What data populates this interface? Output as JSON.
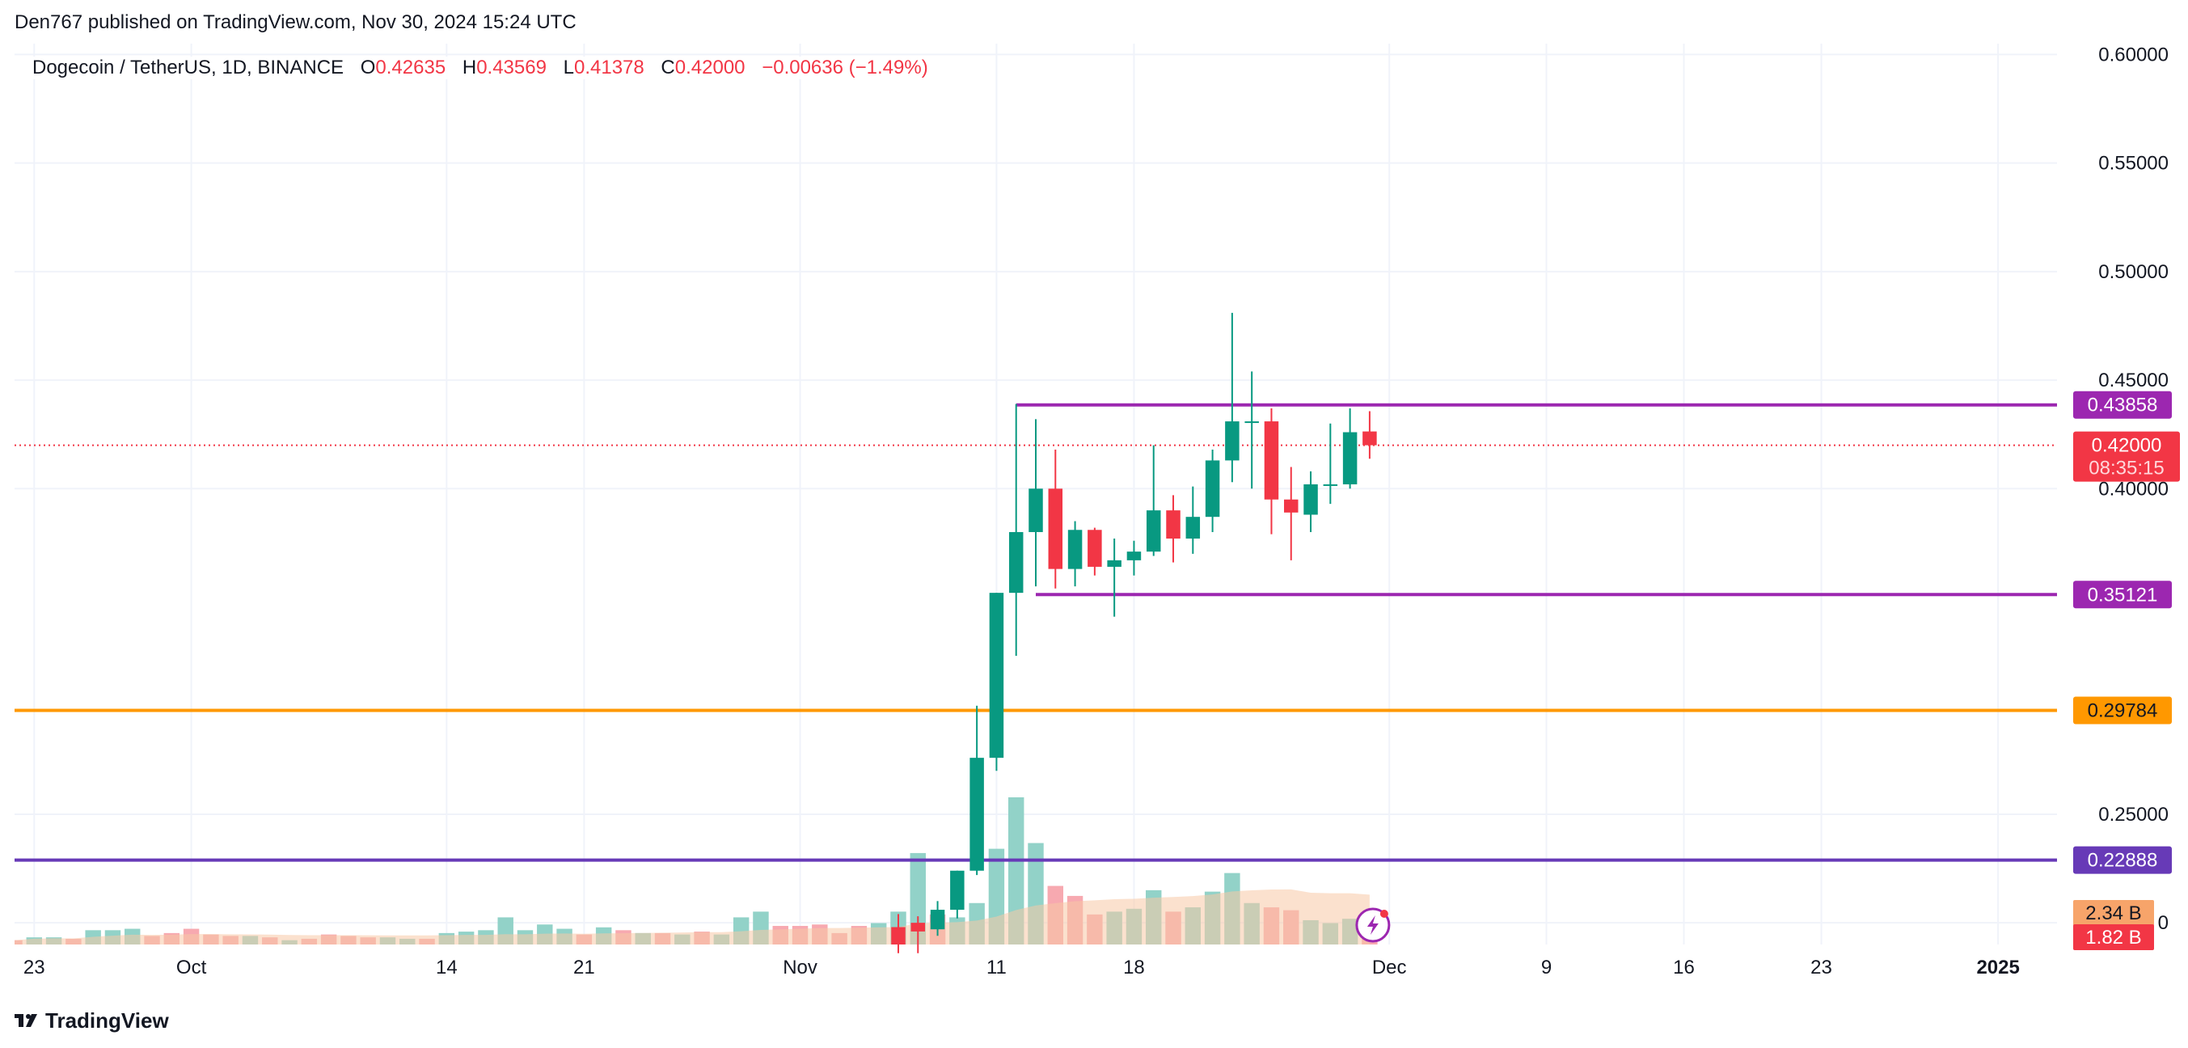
{
  "header": {
    "byline": "Den767 published on TradingView.com, Nov 30, 2024 15:24 UTC"
  },
  "legend": {
    "symbol": "Dogecoin / TetherUS, 1D, BINANCE",
    "open_label": "O",
    "open": "0.42635",
    "high_label": "H",
    "high": "0.43569",
    "low_label": "L",
    "low": "0.41378",
    "close_label": "C",
    "close": "0.42000",
    "change": "−0.00636 (−1.49%)"
  },
  "footer": {
    "brand": "TradingView"
  },
  "colors": {
    "up": "#089981",
    "down": "#f23645",
    "up_volume": "#92d2c8",
    "down_volume": "#f7a9b0",
    "purple": "#9c27b0",
    "indigo": "#673ab7",
    "orange": "#ff9800",
    "grid": "#f0f3fa",
    "ma_volume": "#f7c9a6"
  },
  "chart_data": {
    "type": "candlestick",
    "grid": true,
    "y_axis": {
      "ticks": [
        {
          "value": 0.6,
          "label": "0.60000"
        },
        {
          "value": 0.55,
          "label": "0.55000"
        },
        {
          "value": 0.5,
          "label": "0.50000"
        },
        {
          "value": 0.45,
          "label": "0.45000"
        },
        {
          "value": 0.4,
          "label": "0.40000"
        },
        {
          "value": 0.25,
          "label": "0.25000"
        },
        {
          "value": 0.2,
          "label": "0"
        }
      ],
      "range": [
        0.19,
        0.605
      ]
    },
    "x_axis": {
      "ticks": [
        {
          "date": "2024-09-23",
          "label": "23",
          "bold": false
        },
        {
          "date": "2024-10-01",
          "label": "Oct",
          "bold": false
        },
        {
          "date": "2024-10-14",
          "label": "14",
          "bold": false
        },
        {
          "date": "2024-10-21",
          "label": "21",
          "bold": false
        },
        {
          "date": "2024-11-01",
          "label": "Nov",
          "bold": false
        },
        {
          "date": "2024-11-11",
          "label": "11",
          "bold": false
        },
        {
          "date": "2024-11-18",
          "label": "18",
          "bold": false
        },
        {
          "date": "2024-12-01",
          "label": "Dec",
          "bold": false
        },
        {
          "date": "2024-12-09",
          "label": "9",
          "bold": false
        },
        {
          "date": "2024-12-16",
          "label": "16",
          "bold": false
        },
        {
          "date": "2024-12-23",
          "label": "23",
          "bold": false
        },
        {
          "date": "2025-01-01",
          "label": "2025",
          "bold": true
        }
      ],
      "range": [
        "2024-09-22",
        "2025-01-04"
      ]
    },
    "horizontal_lines": [
      {
        "value": 0.43858,
        "label": "0.43858",
        "color": "purple",
        "start": "2024-11-12"
      },
      {
        "value": 0.35121,
        "label": "0.35121",
        "color": "purple",
        "start": "2024-11-13"
      },
      {
        "value": 0.29784,
        "label": "0.29784",
        "color": "orange",
        "start": null
      },
      {
        "value": 0.22888,
        "label": "0.22888",
        "color": "indigo",
        "start": null
      }
    ],
    "last_price": {
      "value": 0.42,
      "label": "0.42000",
      "countdown": "08:35:15"
    },
    "volume_labels": [
      {
        "label": "2.34 B",
        "color": "#f7a46a"
      },
      {
        "label": "1.82 B",
        "color": "#f23645"
      }
    ],
    "candles": [
      {
        "date": "2024-11-06",
        "open": 0.198,
        "high": 0.204,
        "low": 0.186,
        "close": 0.19
      },
      {
        "date": "2024-11-07",
        "open": 0.2,
        "high": 0.203,
        "low": 0.186,
        "close": 0.196
      },
      {
        "date": "2024-11-08",
        "open": 0.197,
        "high": 0.21,
        "low": 0.194,
        "close": 0.206
      },
      {
        "date": "2024-11-09",
        "open": 0.206,
        "high": 0.224,
        "low": 0.202,
        "close": 0.224
      },
      {
        "date": "2024-11-10",
        "open": 0.224,
        "high": 0.3,
        "low": 0.222,
        "close": 0.276
      },
      {
        "date": "2024-11-11",
        "open": 0.276,
        "high": 0.352,
        "low": 0.27,
        "close": 0.352
      },
      {
        "date": "2024-11-12",
        "open": 0.352,
        "high": 0.439,
        "low": 0.323,
        "close": 0.38
      },
      {
        "date": "2024-11-13",
        "open": 0.38,
        "high": 0.432,
        "low": 0.355,
        "close": 0.4
      },
      {
        "date": "2024-11-14",
        "open": 0.4,
        "high": 0.418,
        "low": 0.354,
        "close": 0.363
      },
      {
        "date": "2024-11-15",
        "open": 0.363,
        "high": 0.385,
        "low": 0.355,
        "close": 0.381
      },
      {
        "date": "2024-11-16",
        "open": 0.381,
        "high": 0.382,
        "low": 0.36,
        "close": 0.364
      },
      {
        "date": "2024-11-17",
        "open": 0.364,
        "high": 0.377,
        "low": 0.341,
        "close": 0.367
      },
      {
        "date": "2024-11-18",
        "open": 0.367,
        "high": 0.376,
        "low": 0.36,
        "close": 0.371
      },
      {
        "date": "2024-11-19",
        "open": 0.371,
        "high": 0.42,
        "low": 0.369,
        "close": 0.39
      },
      {
        "date": "2024-11-20",
        "open": 0.39,
        "high": 0.397,
        "low": 0.366,
        "close": 0.377
      },
      {
        "date": "2024-11-21",
        "open": 0.377,
        "high": 0.401,
        "low": 0.37,
        "close": 0.387
      },
      {
        "date": "2024-11-22",
        "open": 0.387,
        "high": 0.418,
        "low": 0.38,
        "close": 0.413
      },
      {
        "date": "2024-11-23",
        "open": 0.413,
        "high": 0.481,
        "low": 0.403,
        "close": 0.431
      },
      {
        "date": "2024-11-24",
        "open": 0.431,
        "high": 0.454,
        "low": 0.4,
        "close": 0.431
      },
      {
        "date": "2024-11-25",
        "open": 0.431,
        "high": 0.437,
        "low": 0.379,
        "close": 0.395
      },
      {
        "date": "2024-11-26",
        "open": 0.395,
        "high": 0.41,
        "low": 0.367,
        "close": 0.389
      },
      {
        "date": "2024-11-27",
        "open": 0.388,
        "high": 0.408,
        "low": 0.38,
        "close": 0.402
      },
      {
        "date": "2024-11-28",
        "open": 0.402,
        "high": 0.43,
        "low": 0.393,
        "close": 0.402
      },
      {
        "date": "2024-11-29",
        "open": 0.402,
        "high": 0.437,
        "low": 0.4,
        "close": 0.426
      },
      {
        "date": "2024-11-30",
        "open": 0.42635,
        "high": 0.43569,
        "low": 0.41378,
        "close": 0.42
      }
    ],
    "volume": {
      "unit": "B",
      "bars": [
        {
          "date": "2024-09-22",
          "value": 0.06,
          "dir": "down"
        },
        {
          "date": "2024-09-23",
          "value": 0.1,
          "dir": "up"
        },
        {
          "date": "2024-09-24",
          "value": 0.1,
          "dir": "up"
        },
        {
          "date": "2024-09-25",
          "value": 0.08,
          "dir": "down"
        },
        {
          "date": "2024-09-26",
          "value": 0.2,
          "dir": "up"
        },
        {
          "date": "2024-09-27",
          "value": 0.2,
          "dir": "up"
        },
        {
          "date": "2024-09-28",
          "value": 0.22,
          "dir": "up"
        },
        {
          "date": "2024-09-29",
          "value": 0.12,
          "dir": "down"
        },
        {
          "date": "2024-09-30",
          "value": 0.16,
          "dir": "down"
        },
        {
          "date": "2024-10-01",
          "value": 0.22,
          "dir": "down"
        },
        {
          "date": "2024-10-02",
          "value": 0.14,
          "dir": "down"
        },
        {
          "date": "2024-10-03",
          "value": 0.12,
          "dir": "down"
        },
        {
          "date": "2024-10-04",
          "value": 0.12,
          "dir": "up"
        },
        {
          "date": "2024-10-05",
          "value": 0.1,
          "dir": "down"
        },
        {
          "date": "2024-10-06",
          "value": 0.06,
          "dir": "up"
        },
        {
          "date": "2024-10-07",
          "value": 0.08,
          "dir": "down"
        },
        {
          "date": "2024-10-08",
          "value": 0.14,
          "dir": "down"
        },
        {
          "date": "2024-10-09",
          "value": 0.12,
          "dir": "down"
        },
        {
          "date": "2024-10-10",
          "value": 0.1,
          "dir": "down"
        },
        {
          "date": "2024-10-11",
          "value": 0.1,
          "dir": "up"
        },
        {
          "date": "2024-10-12",
          "value": 0.08,
          "dir": "up"
        },
        {
          "date": "2024-10-13",
          "value": 0.08,
          "dir": "down"
        },
        {
          "date": "2024-10-14",
          "value": 0.16,
          "dir": "up"
        },
        {
          "date": "2024-10-15",
          "value": 0.18,
          "dir": "up"
        },
        {
          "date": "2024-10-16",
          "value": 0.2,
          "dir": "up"
        },
        {
          "date": "2024-10-17",
          "value": 0.38,
          "dir": "up"
        },
        {
          "date": "2024-10-18",
          "value": 0.2,
          "dir": "up"
        },
        {
          "date": "2024-10-19",
          "value": 0.28,
          "dir": "up"
        },
        {
          "date": "2024-10-20",
          "value": 0.22,
          "dir": "up"
        },
        {
          "date": "2024-10-21",
          "value": 0.14,
          "dir": "down"
        },
        {
          "date": "2024-10-22",
          "value": 0.24,
          "dir": "up"
        },
        {
          "date": "2024-10-23",
          "value": 0.2,
          "dir": "down"
        },
        {
          "date": "2024-10-24",
          "value": 0.16,
          "dir": "up"
        },
        {
          "date": "2024-10-25",
          "value": 0.16,
          "dir": "down"
        },
        {
          "date": "2024-10-26",
          "value": 0.14,
          "dir": "up"
        },
        {
          "date": "2024-10-27",
          "value": 0.18,
          "dir": "down"
        },
        {
          "date": "2024-10-28",
          "value": 0.14,
          "dir": "up"
        },
        {
          "date": "2024-10-29",
          "value": 0.38,
          "dir": "up"
        },
        {
          "date": "2024-10-30",
          "value": 0.46,
          "dir": "up"
        },
        {
          "date": "2024-10-31",
          "value": 0.26,
          "dir": "down"
        },
        {
          "date": "2024-11-01",
          "value": 0.26,
          "dir": "down"
        },
        {
          "date": "2024-11-02",
          "value": 0.28,
          "dir": "down"
        },
        {
          "date": "2024-11-03",
          "value": 0.16,
          "dir": "down"
        },
        {
          "date": "2024-11-04",
          "value": 0.26,
          "dir": "down"
        },
        {
          "date": "2024-11-05",
          "value": 0.3,
          "dir": "up"
        },
        {
          "date": "2024-11-06",
          "value": 0.46,
          "dir": "up"
        },
        {
          "date": "2024-11-07",
          "value": 1.28,
          "dir": "up"
        },
        {
          "date": "2024-11-08",
          "value": 0.42,
          "dir": "down"
        },
        {
          "date": "2024-11-09",
          "value": 0.38,
          "dir": "up"
        },
        {
          "date": "2024-11-10",
          "value": 0.58,
          "dir": "up"
        },
        {
          "date": "2024-11-11",
          "value": 1.34,
          "dir": "up"
        },
        {
          "date": "2024-11-12",
          "value": 2.06,
          "dir": "up"
        },
        {
          "date": "2024-11-13",
          "value": 1.42,
          "dir": "up"
        },
        {
          "date": "2024-11-14",
          "value": 0.82,
          "dir": "down"
        },
        {
          "date": "2024-11-15",
          "value": 0.68,
          "dir": "down"
        },
        {
          "date": "2024-11-16",
          "value": 0.42,
          "dir": "down"
        },
        {
          "date": "2024-11-17",
          "value": 0.46,
          "dir": "up"
        },
        {
          "date": "2024-11-18",
          "value": 0.5,
          "dir": "up"
        },
        {
          "date": "2024-11-19",
          "value": 0.76,
          "dir": "up"
        },
        {
          "date": "2024-11-20",
          "value": 0.46,
          "dir": "down"
        },
        {
          "date": "2024-11-21",
          "value": 0.52,
          "dir": "up"
        },
        {
          "date": "2024-11-22",
          "value": 0.74,
          "dir": "up"
        },
        {
          "date": "2024-11-23",
          "value": 1.0,
          "dir": "up"
        },
        {
          "date": "2024-11-24",
          "value": 0.58,
          "dir": "up"
        },
        {
          "date": "2024-11-25",
          "value": 0.52,
          "dir": "down"
        },
        {
          "date": "2024-11-26",
          "value": 0.48,
          "dir": "down"
        },
        {
          "date": "2024-11-27",
          "value": 0.34,
          "dir": "up"
        },
        {
          "date": "2024-11-28",
          "value": 0.3,
          "dir": "up"
        },
        {
          "date": "2024-11-29",
          "value": 0.36,
          "dir": "up"
        },
        {
          "date": "2024-11-30",
          "value": 0.18,
          "dir": "down"
        }
      ]
    }
  }
}
